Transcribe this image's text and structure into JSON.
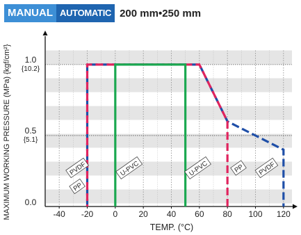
{
  "header": {
    "badge_manual": "MANUAL",
    "badge_automatic": "AUTOMATIC",
    "size_range": "200 mm•250 mm"
  },
  "colors": {
    "manual_badge": "#3d8fd6",
    "automatic_badge": "#1f65b0",
    "pvdf": "#1f4fa8",
    "pp": "#e0245e",
    "upvc": "#1aa850",
    "band": "#e5e5e5"
  },
  "chart_data": {
    "type": "line",
    "title": "",
    "xlabel": "TEMP. (°C)",
    "ylabel": "MAXIMUM WORKING PRESSURE (MPa) {kgf/cm²}",
    "xlim": [
      -50,
      130
    ],
    "ylim": [
      0,
      1.22
    ],
    "x_ticks": [
      -40,
      -20,
      0,
      20,
      40,
      60,
      80,
      100,
      120
    ],
    "y_ticks": [
      {
        "value": 0.0,
        "label": "0.0",
        "sub": ""
      },
      {
        "value": 0.5,
        "label": "0.5",
        "sub": "{5.1}"
      },
      {
        "value": 1.0,
        "label": "1.0",
        "sub": "{10.2}"
      }
    ],
    "grid": true,
    "series": [
      {
        "name": "PVDF",
        "color": "#1f4fa8",
        "style": "dashed",
        "points": [
          [
            -20,
            0
          ],
          [
            -20,
            1.0
          ],
          [
            60,
            1.0
          ],
          [
            80,
            0.6
          ],
          [
            120,
            0.4
          ],
          [
            120,
            0
          ]
        ]
      },
      {
        "name": "PP",
        "color": "#e0245e",
        "style": "dashed",
        "points": [
          [
            -20,
            0
          ],
          [
            -20,
            1.0
          ],
          [
            60,
            1.0
          ],
          [
            80,
            0.6
          ],
          [
            80,
            0
          ]
        ]
      },
      {
        "name": "U-PVC",
        "color": "#1aa850",
        "style": "solid",
        "points": [
          [
            0,
            0
          ],
          [
            0,
            1.0
          ],
          [
            50,
            1.0
          ],
          [
            50,
            0
          ]
        ]
      }
    ],
    "labels": [
      {
        "text": "PVDF",
        "x": -27,
        "y": 0.27
      },
      {
        "text": "PP",
        "x": -27,
        "y": 0.14
      },
      {
        "text": "U-PVC",
        "x": 10,
        "y": 0.27
      },
      {
        "text": "U-PVC",
        "x": 59,
        "y": 0.27
      },
      {
        "text": "PP",
        "x": 88,
        "y": 0.27
      },
      {
        "text": "PVDF",
        "x": 108,
        "y": 0.27
      }
    ]
  }
}
